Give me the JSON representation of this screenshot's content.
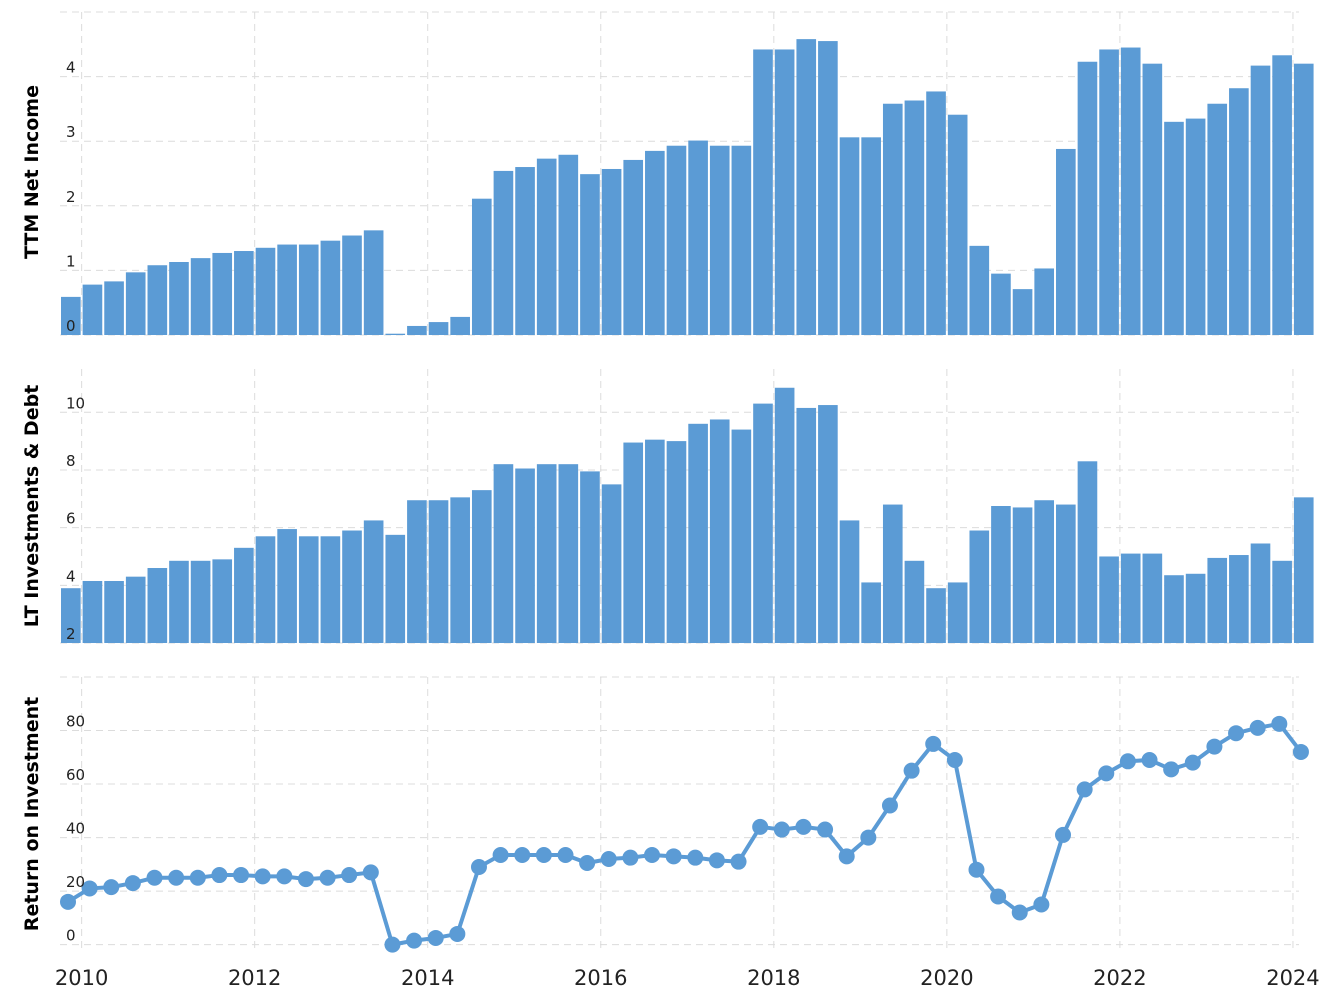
{
  "chart_data": [
    {
      "type": "bar",
      "ylabel": "TTM Net Income",
      "ylim": [
        0,
        5
      ],
      "yticks": [
        0,
        1,
        2,
        3,
        4
      ],
      "color": "#5b9bd5",
      "grid": true,
      "x_start": 2009.75,
      "x_step": 0.25,
      "values": [
        0.59,
        0.78,
        0.83,
        0.97,
        1.08,
        1.13,
        1.19,
        1.27,
        1.3,
        1.35,
        1.4,
        1.4,
        1.46,
        1.54,
        1.62,
        0.02,
        0.14,
        0.2,
        0.28,
        2.11,
        2.54,
        2.6,
        2.73,
        2.79,
        2.49,
        2.57,
        2.71,
        2.85,
        2.93,
        3.01,
        2.93,
        2.93,
        4.42,
        4.42,
        4.58,
        4.55,
        3.06,
        3.06,
        3.58,
        3.63,
        3.77,
        3.41,
        1.38,
        0.95,
        0.71,
        1.03,
        2.88,
        4.23,
        4.42,
        4.45,
        4.2,
        3.3,
        3.35,
        3.58,
        3.82,
        4.17,
        4.33,
        4.2
      ]
    },
    {
      "type": "bar",
      "ylabel": "LT Investments & Debt",
      "ylim": [
        2,
        11.5
      ],
      "yticks": [
        2,
        4,
        6,
        8,
        10
      ],
      "color": "#5b9bd5",
      "grid": true,
      "x_start": 2009.75,
      "x_step": 0.25,
      "values": [
        3.9,
        4.15,
        4.15,
        4.3,
        4.6,
        4.85,
        4.85,
        4.9,
        5.3,
        5.7,
        5.95,
        5.7,
        5.7,
        5.9,
        6.25,
        5.75,
        6.95,
        6.95,
        7.05,
        7.3,
        8.2,
        8.05,
        8.2,
        8.2,
        7.95,
        7.5,
        8.95,
        9.05,
        9.0,
        9.6,
        9.75,
        9.4,
        10.3,
        10.85,
        10.15,
        10.25,
        6.25,
        4.1,
        6.8,
        4.85,
        3.9,
        4.1,
        5.9,
        6.75,
        6.7,
        6.95,
        6.8,
        8.3,
        5.0,
        5.1,
        5.1,
        4.35,
        4.4,
        4.95,
        5.05,
        5.45,
        4.85,
        7.05
      ]
    },
    {
      "type": "line",
      "ylabel": "Return on Investment",
      "ylim": [
        -2,
        100
      ],
      "yticks": [
        0,
        20,
        40,
        60,
        80
      ],
      "color": "#5b9bd5",
      "grid": true,
      "x_start": 2009.75,
      "x_step": 0.25,
      "values": [
        16,
        21,
        21.5,
        23,
        25,
        25,
        25,
        26,
        26,
        25.5,
        25.5,
        24.5,
        25,
        26,
        27,
        0,
        1.5,
        2.5,
        4,
        29,
        33.5,
        33.5,
        33.5,
        33.5,
        30.5,
        32,
        32.5,
        33.5,
        33,
        32.5,
        31.5,
        31,
        44,
        43,
        44,
        43,
        33,
        40,
        52,
        65,
        75,
        69,
        28,
        18,
        12,
        15,
        41,
        58,
        64,
        68.5,
        69,
        65.5,
        68,
        74,
        79,
        81,
        82.5,
        72
      ]
    }
  ],
  "x_axis": {
    "range": [
      2009.75,
      2024.07
    ],
    "ticks": [
      "2010",
      "2012",
      "2014",
      "2016",
      "2018",
      "2020",
      "2022",
      "2024"
    ]
  }
}
